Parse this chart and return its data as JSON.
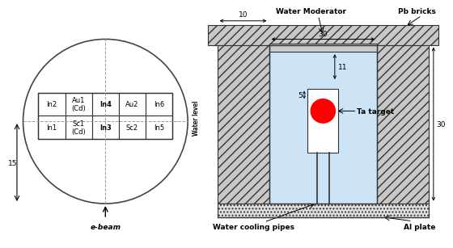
{
  "left_panel": {
    "grid_cells": [
      [
        "In2",
        "Au1\n(Cd)",
        "In4",
        "Au2",
        "In6"
      ],
      [
        "In1",
        "Sc1\n(Cd)",
        "In3",
        "Sc2",
        "In5"
      ]
    ],
    "bold_cols": [
      2
    ],
    "dim_label": "15",
    "ebeam_label": "e-beam"
  },
  "right_panel": {
    "label_water_moderator": "Water Moderator",
    "label_pb_bricks": "Pb bricks",
    "label_water_cooling": "Water cooling pipes",
    "label_al_plate": "Al plate",
    "label_ta_target": "Ta target",
    "label_water_level": "Water level",
    "dim_30_top": "30",
    "dim_11": "11",
    "dim_5": "5",
    "dim_10": "10",
    "dim_30_right": "30"
  },
  "background_color": "#ffffff"
}
